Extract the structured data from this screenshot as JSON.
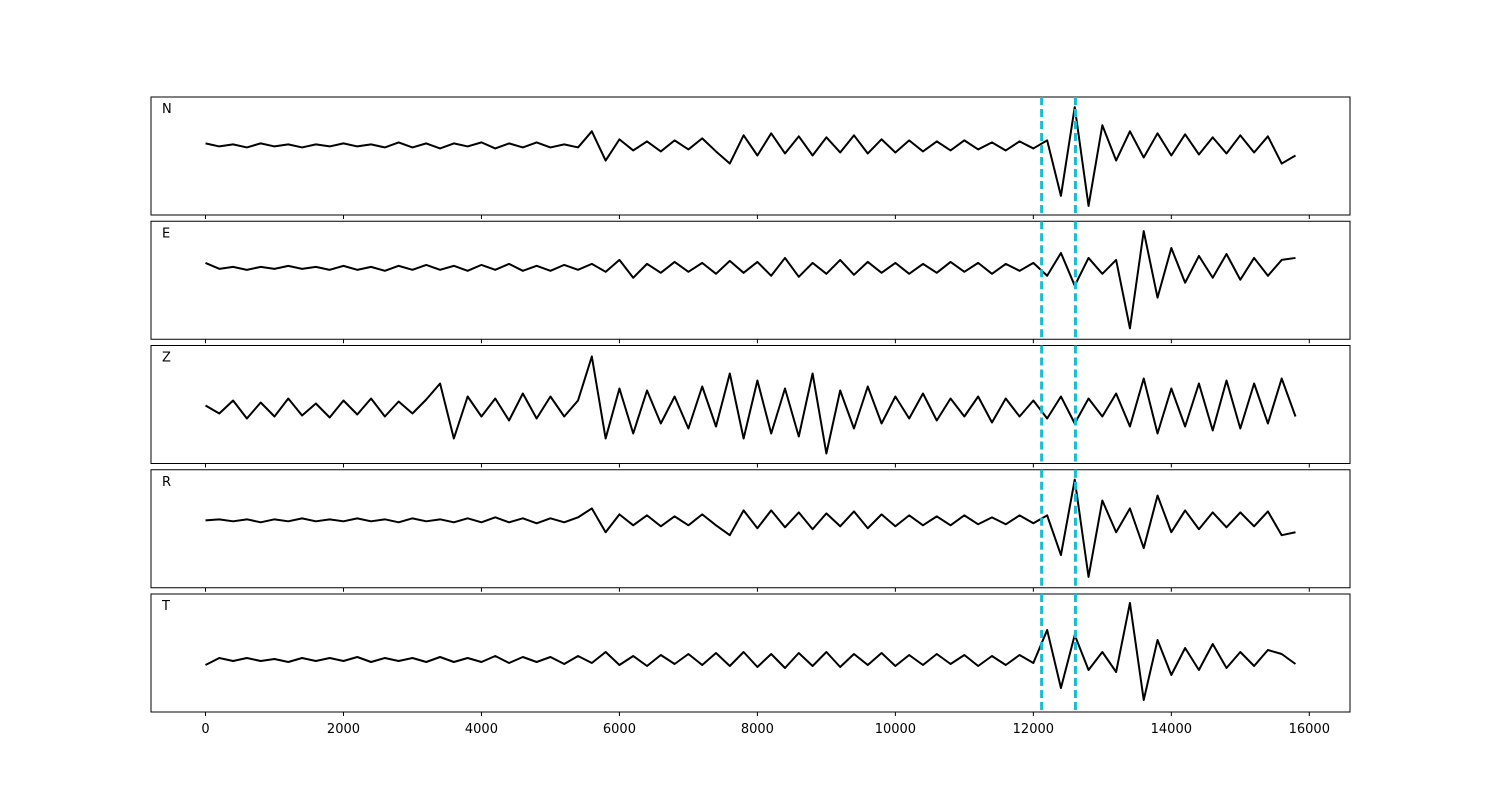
{
  "chart_data": {
    "type": "line",
    "x": [
      0,
      200,
      400,
      600,
      800,
      1000,
      1200,
      1400,
      1600,
      1800,
      2000,
      2200,
      2400,
      2600,
      2800,
      3000,
      3200,
      3400,
      3600,
      3800,
      4000,
      4200,
      4400,
      4600,
      4800,
      5000,
      5200,
      5400,
      5600,
      5800,
      6000,
      6200,
      6400,
      6600,
      6800,
      7000,
      7200,
      7400,
      7600,
      7800,
      8000,
      8200,
      8400,
      8600,
      8800,
      9000,
      9200,
      9400,
      9600,
      9800,
      10000,
      10200,
      10400,
      10600,
      10800,
      11000,
      11200,
      11400,
      11600,
      11800,
      12000,
      12200,
      12400,
      12600,
      12800,
      13000,
      13200,
      13400,
      13600,
      13800,
      14000,
      14200,
      14400,
      14600,
      14800,
      15000,
      15200,
      15400,
      15600,
      15800
    ],
    "xlim": [
      -790,
      16590
    ],
    "xticks": [
      0,
      2000,
      4000,
      6000,
      8000,
      10000,
      12000,
      14000,
      16000
    ],
    "line_color": "#000000",
    "vlines": [
      12120,
      12610
    ],
    "vline_color": "#17becf",
    "panels": [
      {
        "label": "N",
        "ylim": [
          -69,
          48
        ],
        "values": [
          2,
          -1,
          1,
          -2,
          2,
          -1,
          1,
          -2,
          1,
          -1,
          2,
          -1,
          1,
          -2,
          3,
          -2,
          2,
          -3,
          2,
          -1,
          3,
          -3,
          2,
          -2,
          3,
          -2,
          1,
          -2,
          14,
          -15,
          6,
          -5,
          4,
          -6,
          5,
          -4,
          7,
          -6,
          -18,
          10,
          -10,
          12,
          -8,
          9,
          -10,
          8,
          -7,
          10,
          -8,
          6,
          -7,
          5,
          -6,
          4,
          -5,
          5,
          -4,
          3,
          -5,
          4,
          -3,
          5,
          -50,
          38,
          -60,
          20,
          -15,
          14,
          -12,
          12,
          -10,
          11,
          -9,
          8,
          -8,
          10,
          -7,
          9,
          -18,
          -10
        ]
      },
      {
        "label": "E",
        "ylim": [
          -72,
          47
        ],
        "values": [
          5,
          -1,
          1,
          -2,
          1,
          -1,
          2,
          -1,
          1,
          -2,
          2,
          -2,
          1,
          -3,
          2,
          -2,
          3,
          -2,
          2,
          -3,
          3,
          -2,
          4,
          -3,
          2,
          -3,
          3,
          -2,
          4,
          -4,
          8,
          -10,
          4,
          -5,
          6,
          -4,
          5,
          -6,
          7,
          -5,
          6,
          -8,
          10,
          -9,
          5,
          -6,
          8,
          -7,
          6,
          -5,
          5,
          -6,
          4,
          -5,
          6,
          -4,
          5,
          -6,
          4,
          -3,
          5,
          -8,
          15,
          -18,
          10,
          -6,
          8,
          -61,
          37,
          -30,
          20,
          -15,
          12,
          -10,
          14,
          -12,
          10,
          -8,
          8,
          10
        ]
      },
      {
        "label": "Z",
        "ylim": [
          -55,
          63
        ],
        "values": [
          3,
          -5,
          8,
          -10,
          6,
          -8,
          10,
          -7,
          5,
          -9,
          8,
          -6,
          10,
          -8,
          7,
          -5,
          9,
          25,
          -30,
          12,
          -8,
          10,
          -12,
          15,
          -10,
          12,
          -8,
          8,
          52,
          -30,
          20,
          -25,
          18,
          -15,
          12,
          -20,
          22,
          -18,
          35,
          -30,
          28,
          -25,
          20,
          -28,
          35,
          -45,
          18,
          -20,
          22,
          -15,
          12,
          -10,
          15,
          -12,
          10,
          -8,
          12,
          -14,
          10,
          -8,
          8,
          -10,
          12,
          -15,
          10,
          -8,
          15,
          -18,
          30,
          -25,
          20,
          -18,
          25,
          -22,
          28,
          -20,
          25,
          -15,
          30,
          -8
        ]
      },
      {
        "label": "R",
        "ylim": [
          -68,
          51
        ],
        "values": [
          0,
          1,
          -1,
          1,
          -2,
          1,
          -1,
          2,
          -1,
          1,
          -1,
          2,
          -1,
          1,
          -2,
          2,
          -1,
          1,
          -2,
          2,
          -2,
          3,
          -2,
          2,
          -3,
          2,
          -2,
          3,
          12,
          -12,
          6,
          -5,
          5,
          -6,
          4,
          -5,
          6,
          -5,
          -15,
          10,
          -8,
          10,
          -7,
          8,
          -9,
          7,
          -6,
          9,
          -8,
          6,
          -6,
          5,
          -5,
          4,
          -5,
          5,
          -4,
          3,
          -4,
          5,
          -3,
          5,
          -35,
          41,
          -57,
          20,
          -12,
          12,
          -28,
          25,
          -12,
          10,
          -9,
          8,
          -7,
          8,
          -6,
          9,
          -15,
          -12
        ]
      },
      {
        "label": "T",
        "ylim": [
          -52,
          66
        ],
        "values": [
          -5,
          2,
          -1,
          2,
          -1,
          1,
          -2,
          2,
          -1,
          2,
          -1,
          3,
          -2,
          2,
          -1,
          2,
          -2,
          3,
          -2,
          2,
          -2,
          4,
          -3,
          3,
          -2,
          3,
          -4,
          4,
          -3,
          8,
          -5,
          4,
          -6,
          5,
          -4,
          6,
          -5,
          7,
          -6,
          8,
          -7,
          6,
          -8,
          7,
          -6,
          8,
          -7,
          6,
          -5,
          7,
          -6,
          5,
          -5,
          6,
          -4,
          5,
          -6,
          4,
          -5,
          5,
          -3,
          30,
          -28,
          25,
          -10,
          8,
          -12,
          57,
          -40,
          20,
          -15,
          12,
          -10,
          16,
          -8,
          8,
          -6,
          10,
          6,
          -4
        ]
      }
    ]
  }
}
